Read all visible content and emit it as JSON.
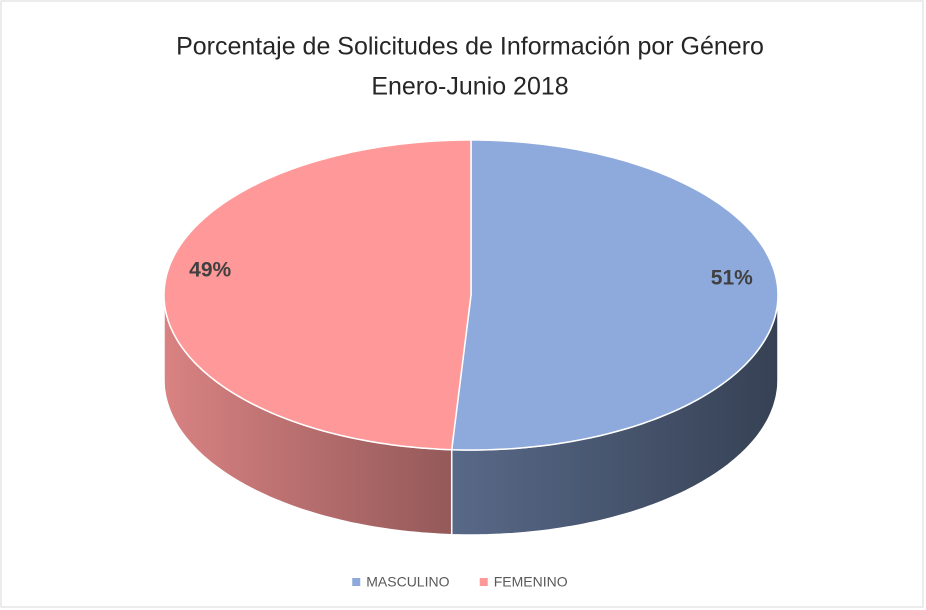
{
  "chart_data": {
    "type": "pie3d",
    "title": "Porcentaje de Solicitudes de Información por Género",
    "subtitle": "Enero-Junio 2018",
    "categories": [
      "MASCULINO",
      "FEMENINO"
    ],
    "values": [
      51,
      49
    ],
    "value_labels": [
      "51%",
      "49%"
    ],
    "colors": [
      "#8eaadc",
      "#ff9999"
    ],
    "legend": "bottom"
  }
}
